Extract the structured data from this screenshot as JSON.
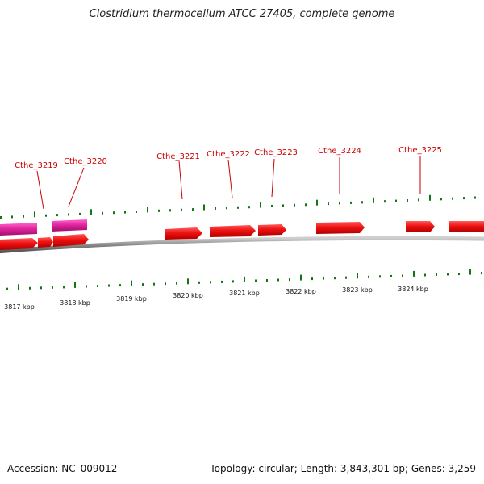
{
  "title": "Clostridium thermocellum ATCC 27405, complete genome",
  "footer": {
    "accession": "Accession: NC_009012",
    "summary": "Topology: circular; Length: 3,843,301 bp; Genes: 3,259"
  },
  "colors": {
    "gene_forward": "#ee1111",
    "gene_reverse": "#dd2299",
    "label": "#cc0000",
    "gc_tick": "#117711",
    "backbone": "#8a8a8a",
    "scale_tick": "#117711"
  },
  "genes": [
    {
      "label": "Cthe_3219"
    },
    {
      "label": "Cthe_3220"
    },
    {
      "label": "Cthe_3221"
    },
    {
      "label": "Cthe_3222"
    },
    {
      "label": "Cthe_3223"
    },
    {
      "label": "Cthe_3224"
    },
    {
      "label": "Cthe_3225"
    }
  ],
  "scale_labels": [
    "3817 kbp",
    "3818 kbp",
    "3819 kbp",
    "3820 kbp",
    "3821 kbp",
    "3822 kbp",
    "3823 kbp",
    "3824 kbp"
  ]
}
